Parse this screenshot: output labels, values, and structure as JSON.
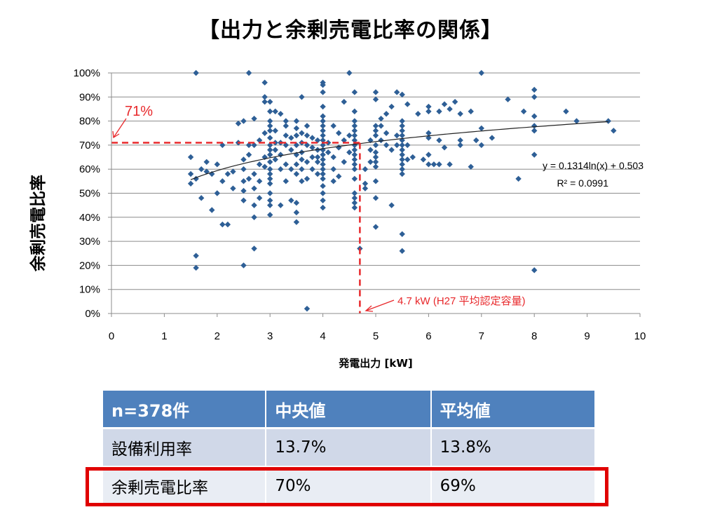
{
  "title": "【出力と余剰売電比率の関係】",
  "chart_data": {
    "type": "scatter",
    "title": "【出力と余剰売電比率の関係】",
    "xlabel": "発電出力 [kW]",
    "ylabel": "余剰売電比率",
    "xlim": [
      0,
      10
    ],
    "ylim": [
      0,
      100
    ],
    "x_ticks": [
      "0",
      "1",
      "2",
      "3",
      "4",
      "5",
      "6",
      "7",
      "8",
      "9",
      "10"
    ],
    "y_ticks": [
      "0%",
      "10%",
      "20%",
      "30%",
      "40%",
      "50%",
      "60%",
      "70%",
      "80%",
      "90%",
      "100%"
    ],
    "grid": "horizontal",
    "marker_color": "#2e5f96",
    "trendline": {
      "equation": "y = 0.1314ln(x) + 0.503",
      "r2": "R² = 0.0991",
      "a": 0.1314,
      "b": 0.503,
      "x_from": 1.5,
      "x_to": 9.4
    },
    "reference": {
      "y_label": "71%",
      "y_value": 71,
      "x_label": "4.7 kW (H27 平均認定容量)",
      "x_value": 4.7,
      "color": "#e8282b"
    },
    "points": [
      [
        1.6,
        100
      ],
      [
        2.6,
        100
      ],
      [
        4.5,
        100
      ],
      [
        7.0,
        100
      ],
      [
        4.0,
        96
      ],
      [
        4.0,
        95
      ],
      [
        2.9,
        96
      ],
      [
        8.0,
        93
      ],
      [
        5.4,
        92
      ],
      [
        4.6,
        92
      ],
      [
        5.0,
        92
      ],
      [
        5.5,
        91
      ],
      [
        3.6,
        90
      ],
      [
        8.0,
        90
      ],
      [
        2.9,
        90
      ],
      [
        5.0,
        89
      ],
      [
        7.5,
        89
      ],
      [
        4.4,
        88
      ],
      [
        6.5,
        88
      ],
      [
        2.9,
        88
      ],
      [
        6.3,
        87
      ],
      [
        5.6,
        87
      ],
      [
        5.3,
        86
      ],
      [
        6.0,
        86
      ],
      [
        6.0,
        84
      ],
      [
        6.2,
        84
      ],
      [
        3.1,
        84
      ],
      [
        4.6,
        84
      ],
      [
        5.2,
        83
      ],
      [
        8.6,
        84
      ],
      [
        7.8,
        84
      ],
      [
        6.4,
        85
      ],
      [
        6.8,
        84
      ],
      [
        3.2,
        83
      ],
      [
        2.5,
        80
      ],
      [
        2.7,
        81
      ],
      [
        3.0,
        80
      ],
      [
        3.3,
        80
      ],
      [
        4.0,
        82
      ],
      [
        5.1,
        81
      ],
      [
        5.8,
        83
      ],
      [
        6.6,
        83
      ],
      [
        8.0,
        82
      ],
      [
        8.8,
        80
      ],
      [
        9.4,
        80
      ],
      [
        9.5,
        76
      ],
      [
        7.0,
        77
      ],
      [
        8.0,
        78
      ],
      [
        8.0,
        76
      ],
      [
        6.9,
        72
      ],
      [
        7.0,
        70
      ],
      [
        7.2,
        73
      ],
      [
        6.0,
        75
      ],
      [
        6.0,
        73
      ],
      [
        6.2,
        72
      ],
      [
        6.6,
        72
      ],
      [
        6.3,
        69
      ],
      [
        6.6,
        70
      ],
      [
        6.0,
        66
      ],
      [
        6.0,
        62
      ],
      [
        6.2,
        62
      ],
      [
        6.8,
        61
      ],
      [
        7.7,
        56
      ],
      [
        8.0,
        66
      ],
      [
        5.5,
        80
      ],
      [
        5.5,
        78
      ],
      [
        5.5,
        76
      ],
      [
        5.5,
        74
      ],
      [
        5.5,
        72
      ],
      [
        5.5,
        70
      ],
      [
        5.5,
        68
      ],
      [
        5.5,
        66
      ],
      [
        5.5,
        64
      ],
      [
        5.5,
        62
      ],
      [
        5.5,
        60
      ],
      [
        5.5,
        58
      ],
      [
        5.4,
        70
      ],
      [
        5.3,
        68
      ],
      [
        5.2,
        75
      ],
      [
        5.1,
        72
      ],
      [
        5.0,
        78
      ],
      [
        5.0,
        76
      ],
      [
        5.0,
        74
      ],
      [
        5.0,
        70
      ],
      [
        5.0,
        67
      ],
      [
        5.0,
        65
      ],
      [
        5.0,
        63
      ],
      [
        5.0,
        61
      ],
      [
        5.0,
        55
      ],
      [
        5.0,
        48
      ],
      [
        5.0,
        36
      ],
      [
        5.3,
        45
      ],
      [
        5.5,
        33
      ],
      [
        5.5,
        26
      ],
      [
        4.6,
        80
      ],
      [
        4.6,
        78
      ],
      [
        4.6,
        76
      ],
      [
        4.6,
        74
      ],
      [
        4.6,
        72
      ],
      [
        4.6,
        70
      ],
      [
        4.6,
        68
      ],
      [
        4.6,
        66
      ],
      [
        4.6,
        64
      ],
      [
        4.6,
        62
      ],
      [
        4.6,
        60
      ],
      [
        4.6,
        56
      ],
      [
        4.6,
        50
      ],
      [
        4.6,
        44
      ],
      [
        4.6,
        48
      ],
      [
        4.7,
        27
      ],
      [
        4.8,
        52
      ],
      [
        4.8,
        54
      ],
      [
        4.4,
        72
      ],
      [
        4.3,
        69
      ],
      [
        4.2,
        65
      ],
      [
        4.1,
        71
      ],
      [
        4.0,
        92
      ],
      [
        4.0,
        86
      ],
      [
        4.0,
        80
      ],
      [
        4.0,
        78
      ],
      [
        4.0,
        76
      ],
      [
        4.0,
        74
      ],
      [
        4.0,
        72
      ],
      [
        4.0,
        70
      ],
      [
        4.0,
        68
      ],
      [
        4.0,
        66
      ],
      [
        4.0,
        64
      ],
      [
        4.0,
        62
      ],
      [
        4.0,
        60
      ],
      [
        4.0,
        58
      ],
      [
        4.0,
        56
      ],
      [
        4.0,
        53
      ],
      [
        4.0,
        50
      ],
      [
        4.0,
        47
      ],
      [
        4.0,
        44
      ],
      [
        3.9,
        72
      ],
      [
        3.9,
        68
      ],
      [
        3.9,
        65
      ],
      [
        3.8,
        73
      ],
      [
        3.8,
        60
      ],
      [
        3.7,
        78
      ],
      [
        3.7,
        70
      ],
      [
        3.7,
        63
      ],
      [
        3.7,
        56
      ],
      [
        3.6,
        75
      ],
      [
        3.6,
        71
      ],
      [
        3.6,
        67
      ],
      [
        3.6,
        64
      ],
      [
        3.6,
        60
      ],
      [
        3.6,
        55
      ],
      [
        3.5,
        80
      ],
      [
        3.5,
        77
      ],
      [
        3.5,
        74
      ],
      [
        3.5,
        70
      ],
      [
        3.5,
        66
      ],
      [
        3.5,
        62
      ],
      [
        3.5,
        58
      ],
      [
        3.5,
        46
      ],
      [
        3.5,
        42
      ],
      [
        3.5,
        38
      ],
      [
        3.4,
        73
      ],
      [
        3.4,
        68
      ],
      [
        3.4,
        47
      ],
      [
        3.3,
        70
      ],
      [
        3.3,
        62
      ],
      [
        3.2,
        66
      ],
      [
        3.2,
        60
      ],
      [
        3.2,
        45
      ],
      [
        3.1,
        76
      ],
      [
        3.1,
        71
      ],
      [
        3.1,
        64
      ],
      [
        3.0,
        88
      ],
      [
        3.0,
        84
      ],
      [
        3.0,
        78
      ],
      [
        3.0,
        76
      ],
      [
        3.0,
        73
      ],
      [
        3.0,
        70
      ],
      [
        3.0,
        68
      ],
      [
        3.0,
        66
      ],
      [
        3.0,
        63
      ],
      [
        3.0,
        60
      ],
      [
        3.0,
        58
      ],
      [
        3.0,
        56
      ],
      [
        3.0,
        54
      ],
      [
        3.0,
        50
      ],
      [
        3.0,
        45
      ],
      [
        3.0,
        41
      ],
      [
        2.9,
        75
      ],
      [
        2.9,
        65
      ],
      [
        2.8,
        72
      ],
      [
        2.8,
        62
      ],
      [
        2.8,
        55
      ],
      [
        2.8,
        48
      ],
      [
        2.7,
        70
      ],
      [
        2.7,
        58
      ],
      [
        2.7,
        52
      ],
      [
        2.7,
        45
      ],
      [
        2.7,
        40
      ],
      [
        2.7,
        27
      ],
      [
        2.6,
        66
      ],
      [
        2.6,
        56
      ],
      [
        2.5,
        64
      ],
      [
        2.5,
        60
      ],
      [
        2.5,
        55
      ],
      [
        2.5,
        51
      ],
      [
        2.5,
        47
      ],
      [
        2.5,
        20
      ],
      [
        2.4,
        79
      ],
      [
        2.4,
        71
      ],
      [
        2.3,
        59
      ],
      [
        2.2,
        58
      ],
      [
        2.2,
        37
      ],
      [
        2.1,
        70
      ],
      [
        2.1,
        55
      ],
      [
        2.1,
        37
      ],
      [
        2.0,
        62
      ],
      [
        1.9,
        58
      ],
      [
        1.9,
        43
      ],
      [
        1.8,
        63
      ],
      [
        1.7,
        60
      ],
      [
        1.7,
        48
      ],
      [
        1.6,
        56
      ],
      [
        1.6,
        24
      ],
      [
        1.6,
        19
      ],
      [
        1.5,
        65
      ],
      [
        1.5,
        58
      ],
      [
        1.5,
        54
      ],
      [
        4.2,
        78
      ],
      [
        4.3,
        75
      ],
      [
        4.5,
        74
      ],
      [
        3.8,
        69
      ],
      [
        3.9,
        63
      ],
      [
        4.2,
        60
      ],
      [
        4.3,
        57
      ],
      [
        3.4,
        60
      ],
      [
        3.3,
        55
      ],
      [
        3.7,
        2
      ],
      [
        8.0,
        18
      ],
      [
        4.6,
        46
      ],
      [
        4.2,
        55
      ],
      [
        3.0,
        47
      ],
      [
        3.3,
        78
      ],
      [
        5.6,
        64
      ],
      [
        5.6,
        70
      ],
      [
        5.7,
        65
      ],
      [
        5.9,
        64
      ],
      [
        6.1,
        62
      ],
      [
        6.4,
        62
      ],
      [
        5.4,
        74
      ],
      [
        5.2,
        70
      ],
      [
        5.1,
        78
      ],
      [
        4.8,
        60
      ],
      [
        4.9,
        68
      ],
      [
        4.9,
        72
      ],
      [
        4.9,
        63
      ],
      [
        4.5,
        67
      ],
      [
        4.4,
        63
      ],
      [
        4.3,
        69
      ],
      [
        4.1,
        67
      ],
      [
        3.9,
        58
      ],
      [
        3.8,
        65
      ],
      [
        3.7,
        74
      ],
      [
        3.3,
        74
      ],
      [
        3.2,
        71
      ],
      [
        3.1,
        68
      ],
      [
        2.9,
        61
      ],
      [
        2.6,
        70
      ],
      [
        2.3,
        52
      ],
      [
        2.0,
        50
      ],
      [
        1.8,
        59
      ]
    ]
  },
  "table": {
    "headers": [
      "n=378件",
      "中央値",
      "平均値"
    ],
    "rows": [
      {
        "label": "設備利用率",
        "median": "13.7%",
        "mean": "13.8%"
      },
      {
        "label": "余剰売電比率",
        "median": "70%",
        "mean": "69%"
      }
    ]
  }
}
